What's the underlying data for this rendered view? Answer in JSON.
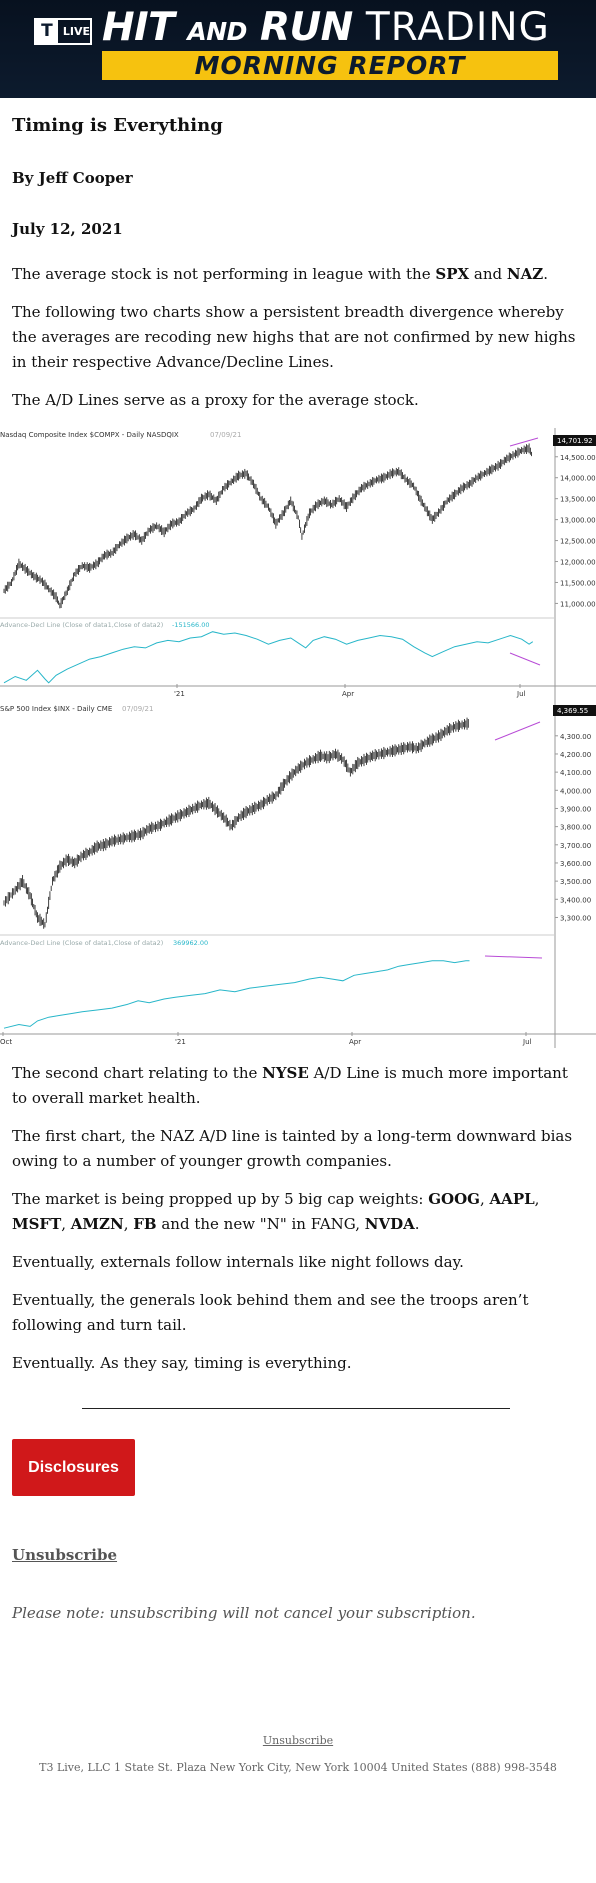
{
  "banner": {
    "logo_t": "T",
    "logo_live": "LIVE",
    "title_hit": "HIT",
    "title_and": "AND",
    "title_run": "RUN",
    "title_trading": "TRADING",
    "subtitle": "MORNING REPORT",
    "colors": {
      "background": "#0d1b2e",
      "subtitle_bg": "#f6c20f"
    }
  },
  "article": {
    "headline": "Timing is Everything",
    "byline": "By Jeff Cooper",
    "date": "July 12, 2021",
    "p1_pre": "The average stock is not performing in league with the ",
    "p1_spx": "SPX",
    "p1_mid": " and ",
    "p1_naz": "NAZ",
    "p1_post": ".",
    "p2": "The following two charts show a persistent breadth divergence whereby the averages are recoding new highs that are not confirmed by new highs in their respective Advance/Decline Lines.",
    "p3": "The A/D Lines serve as a proxy for the average stock.",
    "p4_pre": "The second chart relating to the ",
    "p4_nyse": "NYSE",
    "p4_post": " A/D Line is much more important to overall market health.",
    "p5": "The first chart, the NAZ A/D line is tainted by a long-term downward bias owing to a number of younger growth companies.",
    "p6_pre": "The market is being propped up by 5 big cap weights: ",
    "p6_goog": "GOOG",
    "p6_c1": ", ",
    "p6_aapl": "AAPL",
    "p6_c2": ", ",
    "p6_msft": "MSFT",
    "p6_c3": ", ",
    "p6_amzn": "AMZN",
    "p6_c4": ", ",
    "p6_fb": "FB",
    "p6_mid": " and the new \"N\" in FANG, ",
    "p6_nvda": "NVDA",
    "p6_post": ".",
    "p7": "Eventually, externals follow internals like night follows day.",
    "p8": "Eventually, the generals look behind them and see the troops aren’t following and turn tail.",
    "p9": "Eventually. As they say, timing is everything."
  },
  "chart_data": [
    {
      "type": "bar",
      "title": "Nasdaq Composite Index  $COMPX - Daily  NASDQIX",
      "title_date": "07/09/21",
      "last_value_label": "14,701.92",
      "y_ticks": [
        "14,500.00",
        "14,000.00",
        "13,500.00",
        "13,000.00",
        "12,500.00",
        "12,000.00",
        "11,500.00",
        "11,000.00"
      ],
      "ylim": [
        10700,
        14900
      ],
      "x_ticks": [
        "'21",
        "Apr",
        "Jul"
      ],
      "indicator_title": "Advance-Decl Line (Close of data1,Close of data2)",
      "indicator_value": "-151566.00",
      "price_path": [
        [
          0,
          11300
        ],
        [
          4,
          11500
        ],
        [
          8,
          11950
        ],
        [
          12,
          11800
        ],
        [
          16,
          11650
        ],
        [
          20,
          11550
        ],
        [
          24,
          11350
        ],
        [
          28,
          11150
        ],
        [
          30,
          10950
        ],
        [
          34,
          11300
        ],
        [
          38,
          11700
        ],
        [
          42,
          11900
        ],
        [
          46,
          11850
        ],
        [
          50,
          11950
        ],
        [
          54,
          12150
        ],
        [
          58,
          12200
        ],
        [
          62,
          12400
        ],
        [
          66,
          12550
        ],
        [
          70,
          12650
        ],
        [
          74,
          12500
        ],
        [
          78,
          12750
        ],
        [
          82,
          12850
        ],
        [
          86,
          12700
        ],
        [
          90,
          12900
        ],
        [
          94,
          12950
        ],
        [
          98,
          13150
        ],
        [
          102,
          13250
        ],
        [
          106,
          13500
        ],
        [
          110,
          13600
        ],
        [
          114,
          13450
        ],
        [
          118,
          13750
        ],
        [
          122,
          13900
        ],
        [
          126,
          14050
        ],
        [
          130,
          14100
        ],
        [
          134,
          13850
        ],
        [
          138,
          13500
        ],
        [
          142,
          13300
        ],
        [
          146,
          12900
        ],
        [
          150,
          13150
        ],
        [
          154,
          13450
        ],
        [
          158,
          13050
        ],
        [
          160,
          12600
        ],
        [
          164,
          13150
        ],
        [
          168,
          13350
        ],
        [
          172,
          13450
        ],
        [
          176,
          13350
        ],
        [
          180,
          13500
        ],
        [
          184,
          13300
        ],
        [
          188,
          13550
        ],
        [
          192,
          13750
        ],
        [
          196,
          13850
        ],
        [
          200,
          13950
        ],
        [
          204,
          14000
        ],
        [
          208,
          14100
        ],
        [
          212,
          14150
        ],
        [
          216,
          13950
        ],
        [
          220,
          13800
        ],
        [
          224,
          13450
        ],
        [
          228,
          13150
        ],
        [
          230,
          13000
        ],
        [
          234,
          13200
        ],
        [
          238,
          13450
        ],
        [
          242,
          13600
        ],
        [
          246,
          13750
        ],
        [
          250,
          13850
        ],
        [
          254,
          14000
        ],
        [
          258,
          14100
        ],
        [
          262,
          14200
        ],
        [
          266,
          14300
        ],
        [
          270,
          14450
        ],
        [
          274,
          14550
        ],
        [
          278,
          14650
        ],
        [
          282,
          14700
        ],
        [
          284,
          14500
        ]
      ],
      "ad_path": [
        [
          0,
          2
        ],
        [
          6,
          12
        ],
        [
          12,
          6
        ],
        [
          18,
          22
        ],
        [
          22,
          8
        ],
        [
          24,
          2
        ],
        [
          28,
          14
        ],
        [
          34,
          24
        ],
        [
          40,
          32
        ],
        [
          46,
          40
        ],
        [
          52,
          44
        ],
        [
          58,
          50
        ],
        [
          64,
          56
        ],
        [
          70,
          60
        ],
        [
          76,
          58
        ],
        [
          82,
          66
        ],
        [
          88,
          70
        ],
        [
          94,
          68
        ],
        [
          100,
          74
        ],
        [
          106,
          76
        ],
        [
          112,
          84
        ],
        [
          118,
          80
        ],
        [
          124,
          82
        ],
        [
          130,
          78
        ],
        [
          136,
          72
        ],
        [
          142,
          64
        ],
        [
          148,
          70
        ],
        [
          154,
          74
        ],
        [
          158,
          66
        ],
        [
          162,
          58
        ],
        [
          166,
          70
        ],
        [
          172,
          76
        ],
        [
          178,
          72
        ],
        [
          184,
          64
        ],
        [
          190,
          70
        ],
        [
          196,
          74
        ],
        [
          202,
          78
        ],
        [
          208,
          76
        ],
        [
          214,
          72
        ],
        [
          220,
          60
        ],
        [
          226,
          50
        ],
        [
          230,
          44
        ],
        [
          236,
          52
        ],
        [
          242,
          60
        ],
        [
          248,
          64
        ],
        [
          254,
          68
        ],
        [
          260,
          66
        ],
        [
          266,
          72
        ],
        [
          272,
          78
        ],
        [
          278,
          72
        ],
        [
          282,
          64
        ],
        [
          284,
          68
        ]
      ]
    },
    {
      "type": "bar",
      "title": "S&P 500 Index  $INX - Daily  CME",
      "title_date": "07/09/21",
      "last_value_label": "4,369.55",
      "y_ticks": [
        "4,300.00",
        "4,200.00",
        "4,100.00",
        "4,000.00",
        "3,900.00",
        "3,800.00",
        "3,700.00",
        "3,600.00",
        "3,500.00",
        "3,400.00",
        "3,300.00"
      ],
      "ylim": [
        3220,
        4420
      ],
      "x_ticks": [
        "Oct",
        "'21",
        "Apr",
        "Jul"
      ],
      "indicator_title": "Advance-Decl Line (Close of data1,Close of data2)",
      "indicator_value": "369962.00",
      "price_path": [
        [
          0,
          3380
        ],
        [
          6,
          3450
        ],
        [
          10,
          3500
        ],
        [
          14,
          3420
        ],
        [
          18,
          3300
        ],
        [
          22,
          3260
        ],
        [
          26,
          3500
        ],
        [
          30,
          3580
        ],
        [
          34,
          3620
        ],
        [
          38,
          3600
        ],
        [
          42,
          3640
        ],
        [
          46,
          3660
        ],
        [
          50,
          3690
        ],
        [
          54,
          3700
        ],
        [
          58,
          3720
        ],
        [
          62,
          3730
        ],
        [
          66,
          3740
        ],
        [
          70,
          3750
        ],
        [
          74,
          3760
        ],
        [
          78,
          3790
        ],
        [
          82,
          3800
        ],
        [
          86,
          3820
        ],
        [
          90,
          3840
        ],
        [
          94,
          3860
        ],
        [
          98,
          3880
        ],
        [
          102,
          3900
        ],
        [
          106,
          3920
        ],
        [
          110,
          3930
        ],
        [
          114,
          3890
        ],
        [
          118,
          3850
        ],
        [
          122,
          3800
        ],
        [
          126,
          3850
        ],
        [
          130,
          3880
        ],
        [
          134,
          3900
        ],
        [
          138,
          3920
        ],
        [
          142,
          3950
        ],
        [
          146,
          3970
        ],
        [
          150,
          4030
        ],
        [
          154,
          4080
        ],
        [
          158,
          4120
        ],
        [
          162,
          4150
        ],
        [
          166,
          4170
        ],
        [
          170,
          4190
        ],
        [
          174,
          4180
        ],
        [
          178,
          4200
        ],
        [
          182,
          4170
        ],
        [
          186,
          4100
        ],
        [
          190,
          4150
        ],
        [
          194,
          4170
        ],
        [
          198,
          4190
        ],
        [
          202,
          4200
        ],
        [
          206,
          4210
        ],
        [
          210,
          4220
        ],
        [
          214,
          4230
        ],
        [
          218,
          4240
        ],
        [
          222,
          4230
        ],
        [
          226,
          4260
        ],
        [
          230,
          4280
        ],
        [
          234,
          4300
        ],
        [
          238,
          4330
        ],
        [
          242,
          4350
        ],
        [
          246,
          4360
        ],
        [
          250,
          4370
        ]
      ],
      "ad_path": [
        [
          0,
          2
        ],
        [
          8,
          6
        ],
        [
          14,
          4
        ],
        [
          18,
          10
        ],
        [
          24,
          14
        ],
        [
          30,
          16
        ],
        [
          36,
          18
        ],
        [
          42,
          20
        ],
        [
          50,
          22
        ],
        [
          58,
          24
        ],
        [
          66,
          28
        ],
        [
          72,
          32
        ],
        [
          78,
          30
        ],
        [
          86,
          34
        ],
        [
          92,
          36
        ],
        [
          100,
          38
        ],
        [
          108,
          40
        ],
        [
          116,
          44
        ],
        [
          124,
          42
        ],
        [
          132,
          46
        ],
        [
          140,
          48
        ],
        [
          148,
          50
        ],
        [
          156,
          52
        ],
        [
          164,
          56
        ],
        [
          170,
          58
        ],
        [
          176,
          56
        ],
        [
          182,
          54
        ],
        [
          188,
          60
        ],
        [
          194,
          62
        ],
        [
          200,
          64
        ],
        [
          206,
          66
        ],
        [
          212,
          70
        ],
        [
          218,
          72
        ],
        [
          224,
          74
        ],
        [
          230,
          76
        ],
        [
          236,
          76
        ],
        [
          242,
          74
        ],
        [
          248,
          76
        ],
        [
          250,
          76
        ]
      ]
    }
  ],
  "footer": {
    "disclosures_label": "Disclosures",
    "unsubscribe_label": "Unsubscribe",
    "note": "Please note: unsubscribing will not cancel your subscription.",
    "footer_unsubscribe_label": "Unsubscribe",
    "address": "T3 Live, LLC 1 State St. Plaza New York City, New York 10004 United States (888) 998-3548",
    "colors": {
      "disclosures_bg": "#d0181a",
      "ad_line": "#27b6c9",
      "divergence": "#b84bd6"
    }
  }
}
